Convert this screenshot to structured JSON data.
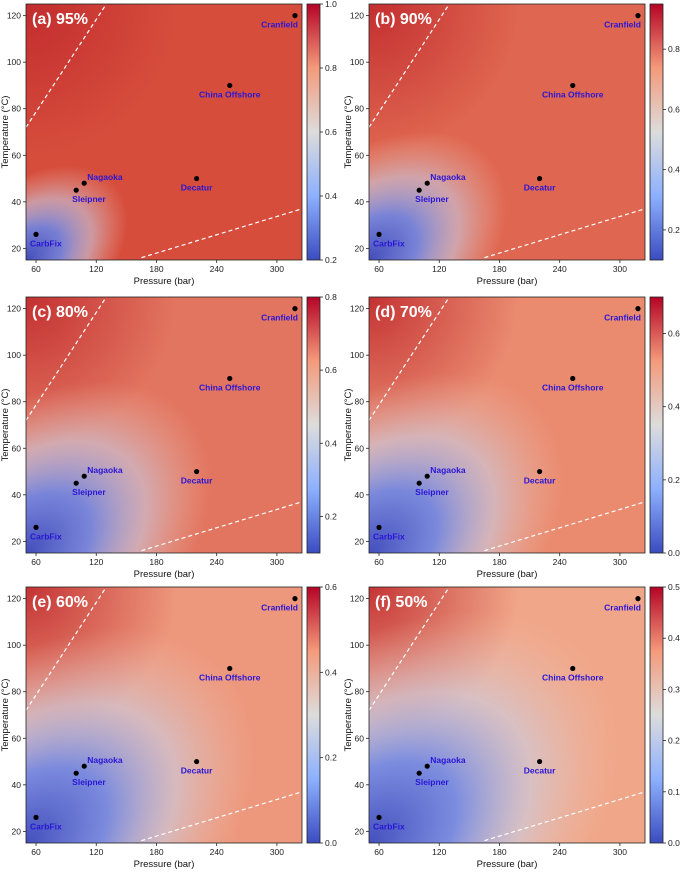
{
  "chart_data": [
    {
      "type": "heatmap",
      "title": "(a) 95%",
      "vmin": 0.2,
      "vmax": 1.0,
      "cbar_ticks": [
        "0.2",
        "0.4",
        "0.6",
        "0.8",
        "1.0"
      ],
      "blue_extent": 0.55,
      "base_color": "#d64d3c"
    },
    {
      "type": "heatmap",
      "title": "(b) 90%",
      "vmin": 0.1,
      "vmax": 0.95,
      "cbar_ticks": [
        "0.2",
        "0.4",
        "0.6",
        "0.8"
      ],
      "blue_extent": 0.75,
      "base_color": "#df6650"
    },
    {
      "type": "heatmap",
      "title": "(c) 80%",
      "vmin": 0.1,
      "vmax": 0.8,
      "cbar_ticks": [
        "0.2",
        "0.4",
        "0.6",
        "0.8"
      ],
      "blue_extent": 1.0,
      "base_color": "#e27560"
    },
    {
      "type": "heatmap",
      "title": "(d) 70%",
      "vmin": 0.0,
      "vmax": 0.7,
      "cbar_ticks": [
        "0.0",
        "0.2",
        "0.4",
        "0.6"
      ],
      "blue_extent": 1.05,
      "base_color": "#ea8b70"
    },
    {
      "type": "heatmap",
      "title": "(e) 60%",
      "vmin": 0.0,
      "vmax": 0.6,
      "cbar_ticks": [
        "0.0",
        "0.2",
        "0.4",
        "0.6"
      ],
      "blue_extent": 1.25,
      "base_color": "#ed977c"
    },
    {
      "type": "heatmap",
      "title": "(f) 50%",
      "vmin": 0.0,
      "vmax": 0.5,
      "cbar_ticks": [
        "0.0",
        "0.1",
        "0.2",
        "0.3",
        "0.4",
        "0.5"
      ],
      "blue_extent": 1.35,
      "base_color": "#f0a689"
    }
  ],
  "shared": {
    "xlabel": "Pressure (bar)",
    "ylabel": "Temperature (°C)",
    "xlim": [
      50,
      325
    ],
    "ylim": [
      15,
      125
    ],
    "xticks": [
      60,
      120,
      180,
      240,
      300
    ],
    "yticks": [
      20,
      40,
      60,
      80,
      100,
      120
    ],
    "sites": [
      {
        "name": "Cranfield",
        "p": 318,
        "t": 120
      },
      {
        "name": "China Offshore",
        "p": 253,
        "t": 90
      },
      {
        "name": "Decatur",
        "p": 220,
        "t": 50
      },
      {
        "name": "Nagaoka",
        "p": 108,
        "t": 48
      },
      {
        "name": "Sleipner",
        "p": 100,
        "t": 45
      },
      {
        "name": "CarbFix",
        "p": 60,
        "t": 26
      }
    ],
    "lines": [
      {
        "p1": 50,
        "t1": 72,
        "p2": 130,
        "t2": 125
      },
      {
        "p1": 165,
        "t1": 16,
        "p2": 325,
        "t2": 37
      }
    ]
  }
}
